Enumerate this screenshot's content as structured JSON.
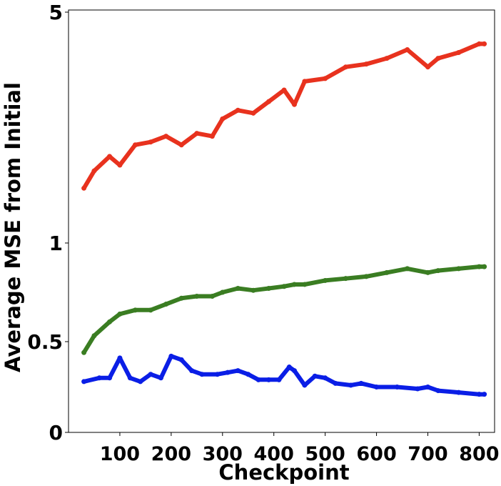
{
  "chart_data": {
    "type": "line",
    "title": "",
    "xlabel": "Checkpoint",
    "ylabel": "Average MSE from Initial",
    "xlim": [
      0,
      830
    ],
    "ylim": [
      0,
      5
    ],
    "y_scale": "nonlinear (ticks 0, 0.5, 1, 5)",
    "grid": false,
    "legend": "none",
    "x_ticks": [
      100,
      200,
      300,
      400,
      500,
      600,
      700,
      800
    ],
    "x_tick_labels": [
      "100",
      "200",
      "300",
      "400",
      "500",
      "600",
      "700",
      "800"
    ],
    "y_ticks": [
      0,
      0.5,
      1,
      5
    ],
    "y_tick_labels": [
      "0",
      "0.5",
      "1",
      "5"
    ],
    "series": [
      {
        "color": "#e8321e",
        "x": [
          30,
          50,
          80,
          100,
          130,
          160,
          190,
          220,
          250,
          280,
          300,
          330,
          360,
          390,
          420,
          440,
          460,
          500,
          540,
          580,
          620,
          660,
          700,
          720,
          760,
          800,
          810
        ],
        "y": [
          1.95,
          2.25,
          2.5,
          2.35,
          2.7,
          2.75,
          2.85,
          2.7,
          2.9,
          2.85,
          3.15,
          3.3,
          3.25,
          3.45,
          3.65,
          3.4,
          3.8,
          3.85,
          4.05,
          4.1,
          4.2,
          4.35,
          4.05,
          4.2,
          4.3,
          4.45,
          4.45
        ]
      },
      {
        "color": "#3a7d22",
        "x": [
          30,
          50,
          80,
          100,
          130,
          160,
          190,
          220,
          250,
          280,
          300,
          330,
          360,
          390,
          420,
          440,
          460,
          500,
          540,
          580,
          620,
          660,
          700,
          720,
          760,
          800,
          810
        ],
        "y": [
          0.44,
          0.53,
          0.6,
          0.64,
          0.66,
          0.66,
          0.69,
          0.72,
          0.73,
          0.73,
          0.75,
          0.77,
          0.76,
          0.77,
          0.78,
          0.79,
          0.79,
          0.81,
          0.82,
          0.83,
          0.85,
          0.87,
          0.85,
          0.86,
          0.87,
          0.88,
          0.88
        ]
      },
      {
        "color": "#0a1ee6",
        "x": [
          30,
          60,
          80,
          100,
          120,
          140,
          160,
          180,
          200,
          220,
          240,
          260,
          290,
          310,
          330,
          350,
          370,
          390,
          410,
          430,
          440,
          460,
          480,
          500,
          520,
          550,
          570,
          600,
          640,
          680,
          700,
          720,
          760,
          800,
          810
        ],
        "y": [
          0.28,
          0.3,
          0.3,
          0.41,
          0.3,
          0.28,
          0.32,
          0.3,
          0.42,
          0.4,
          0.34,
          0.32,
          0.32,
          0.33,
          0.34,
          0.32,
          0.29,
          0.29,
          0.29,
          0.36,
          0.34,
          0.26,
          0.31,
          0.3,
          0.27,
          0.26,
          0.27,
          0.25,
          0.25,
          0.24,
          0.25,
          0.23,
          0.22,
          0.21,
          0.21
        ]
      }
    ]
  }
}
